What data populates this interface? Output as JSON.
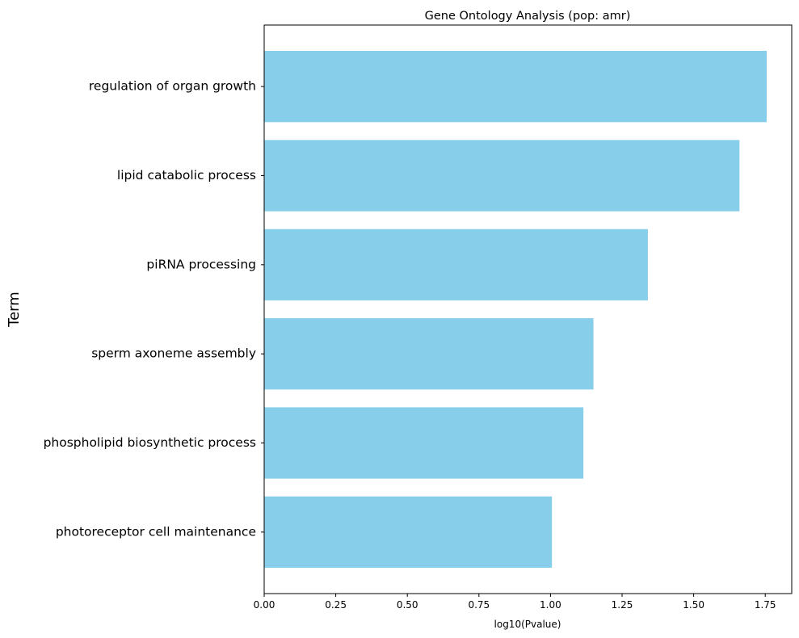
{
  "chart_data": {
    "type": "bar",
    "orientation": "horizontal",
    "title": "Gene Ontology Analysis (pop: amr)",
    "xlabel": "log10(Pvalue)",
    "ylabel": "Term",
    "categories": [
      "regulation of organ growth",
      "lipid catabolic process",
      "piRNA processing",
      "sperm axoneme assembly",
      "phospholipid biosynthetic process",
      "photoreceptor cell maintenance"
    ],
    "values": [
      1.755,
      1.66,
      1.34,
      1.15,
      1.115,
      1.005
    ],
    "xlim": [
      0,
      1.8425
    ],
    "xticks": [
      "0.00",
      "0.25",
      "0.50",
      "0.75",
      "1.00",
      "1.25",
      "1.50",
      "1.75"
    ],
    "bar_color": "#87ceeb",
    "grid": false,
    "legend": "none"
  }
}
